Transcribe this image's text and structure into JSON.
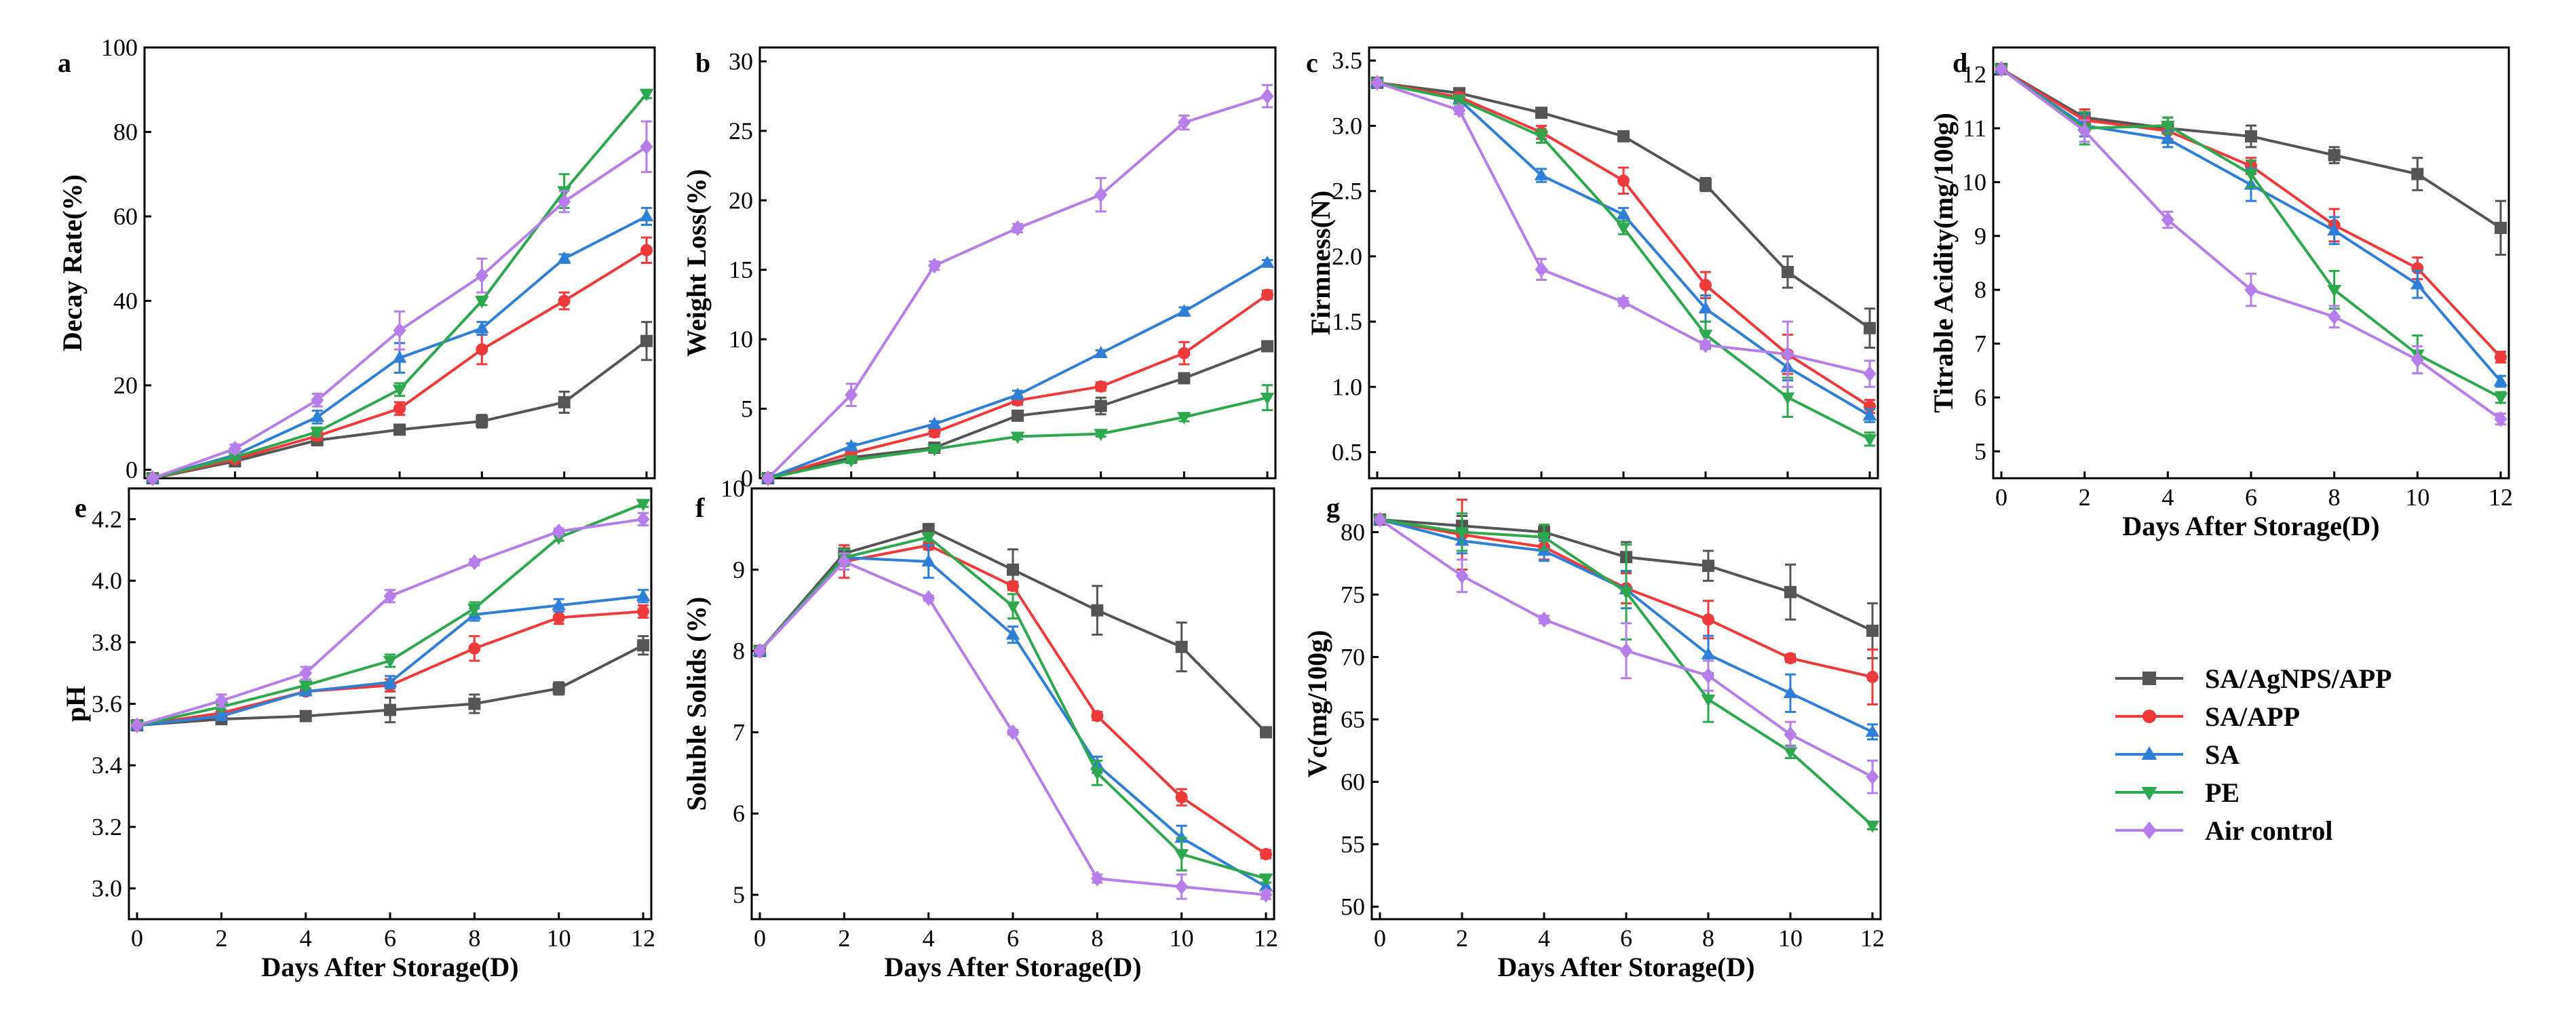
{
  "figure": {
    "series_names": [
      "SA/AgNPS/APP",
      "SA/APP",
      "SA",
      "PE",
      "Air control"
    ],
    "series_colors": [
      "#555555",
      "#ee3a3a",
      "#2f7fd6",
      "#2ea84e",
      "#b57ee8"
    ],
    "series_markers": [
      "square",
      "circle",
      "triangle-up",
      "triangle-down",
      "diamond"
    ],
    "legend_position": "lower-right"
  },
  "chart_data": [
    {
      "type": "line",
      "panel_label": "a",
      "title": "",
      "xlabel": "",
      "ylabel": "Decay Rate(%)",
      "x": [
        0,
        2,
        4,
        6,
        8,
        10,
        12
      ],
      "xlim": [
        0,
        12
      ],
      "ylim": [
        -2,
        100
      ],
      "xticks": [
        0,
        2,
        4,
        6,
        8,
        10,
        12
      ],
      "show_xticklabels": false,
      "yticks": [
        0,
        20,
        40,
        60,
        80,
        100
      ],
      "series": [
        {
          "name": "SA/AgNPS/APP",
          "values": [
            -2,
            2,
            7,
            9.5,
            11.5,
            16,
            30.5
          ],
          "errors": [
            0,
            0.5,
            0.5,
            1,
            1.5,
            2.5,
            4.5
          ]
        },
        {
          "name": "SA/APP",
          "values": [
            -2,
            2.5,
            8,
            14.5,
            28.5,
            40,
            52
          ],
          "errors": [
            0,
            0.5,
            1,
            1.5,
            3.5,
            2,
            3
          ]
        },
        {
          "name": "SA",
          "values": [
            -2,
            3.5,
            12.5,
            26.5,
            33.5,
            50,
            60
          ],
          "errors": [
            0,
            0.5,
            1.5,
            3.5,
            1.5,
            1,
            2
          ]
        },
        {
          "name": "PE",
          "values": [
            -2,
            3,
            9,
            19,
            40,
            66,
            89
          ],
          "errors": [
            0,
            0.5,
            1,
            1.5,
            1,
            4,
            1
          ]
        },
        {
          "name": "Air control",
          "values": [
            -2,
            5,
            16.5,
            33,
            46,
            63.5,
            76.5
          ],
          "errors": [
            0,
            1,
            1.5,
            4.5,
            4,
            2.5,
            6
          ]
        }
      ]
    },
    {
      "type": "line",
      "panel_label": "b",
      "title": "",
      "xlabel": "",
      "ylabel": "Weight Loss(%)",
      "x": [
        0,
        2,
        4,
        6,
        8,
        10,
        12
      ],
      "xlim": [
        0,
        12
      ],
      "ylim": [
        0,
        31
      ],
      "xticks": [
        0,
        2,
        4,
        6,
        8,
        10,
        12
      ],
      "show_xticklabels": false,
      "yticks": [
        0,
        5,
        10,
        15,
        20,
        25,
        30
      ],
      "series": [
        {
          "name": "SA/AgNPS/APP",
          "values": [
            0,
            1.5,
            2.2,
            4.5,
            5.2,
            7.2,
            9.5
          ],
          "errors": [
            0,
            0.2,
            0.2,
            0.3,
            0.6,
            0.3,
            0.2
          ]
        },
        {
          "name": "SA/APP",
          "values": [
            0,
            1.8,
            3.3,
            5.6,
            6.6,
            9,
            13.2
          ],
          "errors": [
            0,
            0.2,
            0.3,
            0.3,
            0.3,
            0.8,
            0.3
          ]
        },
        {
          "name": "SA",
          "values": [
            0,
            2.3,
            3.9,
            6,
            9,
            12,
            15.5
          ],
          "errors": [
            0,
            0.2,
            0.2,
            0.3,
            0.2,
            0.3,
            0.2
          ]
        },
        {
          "name": "PE",
          "values": [
            0,
            1.3,
            2.1,
            3,
            3.2,
            4.4,
            5.8
          ],
          "errors": [
            0,
            0.2,
            0.2,
            0.2,
            0.2,
            0.3,
            0.9
          ]
        },
        {
          "name": "Air control",
          "values": [
            0,
            6,
            15.3,
            18,
            20.4,
            25.6,
            27.5
          ],
          "errors": [
            0,
            0.8,
            0.3,
            0.3,
            1.2,
            0.5,
            0.8
          ]
        }
      ]
    },
    {
      "type": "line",
      "panel_label": "c",
      "title": "",
      "xlabel": "",
      "ylabel": "Firmness(N)",
      "x": [
        0,
        2,
        4,
        6,
        8,
        10,
        12
      ],
      "xlim": [
        0,
        12
      ],
      "ylim": [
        0.3,
        3.6
      ],
      "xticks": [
        0,
        2,
        4,
        6,
        8,
        10,
        12
      ],
      "show_xticklabels": false,
      "yticks": [
        0.5,
        1.0,
        1.5,
        2.0,
        2.5,
        3.0,
        3.5
      ],
      "series": [
        {
          "name": "SA/AgNPS/APP",
          "values": [
            3.33,
            3.25,
            3.1,
            2.92,
            2.55,
            1.88,
            1.45
          ],
          "errors": [
            0,
            0.03,
            0.03,
            0.03,
            0.05,
            0.12,
            0.15
          ]
        },
        {
          "name": "SA/APP",
          "values": [
            3.33,
            3.22,
            2.95,
            2.58,
            1.78,
            1.25,
            0.85
          ],
          "errors": [
            0,
            0.03,
            0.05,
            0.1,
            0.1,
            0.15,
            0.05
          ]
        },
        {
          "name": "SA",
          "values": [
            3.33,
            3.2,
            2.62,
            2.32,
            1.6,
            1.15,
            0.78
          ],
          "errors": [
            0,
            0.03,
            0.05,
            0.05,
            0.1,
            0.1,
            0.05
          ]
        },
        {
          "name": "PE",
          "values": [
            3.33,
            3.2,
            2.92,
            2.22,
            1.4,
            0.92,
            0.6
          ],
          "errors": [
            0,
            0.03,
            0.05,
            0.05,
            0.1,
            0.15,
            0.05
          ]
        },
        {
          "name": "Air control",
          "values": [
            3.33,
            3.12,
            1.9,
            1.65,
            1.32,
            1.25,
            1.1
          ],
          "errors": [
            0,
            0.03,
            0.08,
            0.03,
            0.03,
            0.25,
            0.1
          ]
        }
      ]
    },
    {
      "type": "line",
      "panel_label": "d",
      "title": "",
      "xlabel": "Days After Storage(D)",
      "ylabel": "Titrable Acidity(mg/100g)",
      "x": [
        0,
        2,
        4,
        6,
        8,
        10,
        12
      ],
      "xlim": [
        0,
        12
      ],
      "ylim": [
        4.5,
        12.5
      ],
      "xticks": [
        0,
        2,
        4,
        6,
        8,
        10,
        12
      ],
      "show_xticklabels": true,
      "yticks": [
        5,
        6,
        7,
        8,
        9,
        10,
        11,
        12
      ],
      "series": [
        {
          "name": "SA/AgNPS/APP",
          "values": [
            12.1,
            11.2,
            11.0,
            10.85,
            10.5,
            10.15,
            9.15
          ],
          "errors": [
            0,
            0.15,
            0.2,
            0.2,
            0.15,
            0.3,
            0.5
          ]
        },
        {
          "name": "SA/APP",
          "values": [
            12.1,
            11.15,
            10.95,
            10.3,
            9.2,
            8.4,
            6.75
          ],
          "errors": [
            0,
            0.2,
            0.15,
            0.15,
            0.3,
            0.2,
            0.1
          ]
        },
        {
          "name": "SA",
          "values": [
            12.1,
            11.05,
            10.8,
            9.95,
            9.1,
            8.1,
            6.3
          ],
          "errors": [
            0,
            0.2,
            0.15,
            0.3,
            0.25,
            0.25,
            0.1
          ]
        },
        {
          "name": "PE",
          "values": [
            12.1,
            11.0,
            11.05,
            10.15,
            8.0,
            6.8,
            6.0
          ],
          "errors": [
            0,
            0.3,
            0.15,
            0.25,
            0.35,
            0.35,
            0.1
          ]
        },
        {
          "name": "Air control",
          "values": [
            12.1,
            10.95,
            9.3,
            8.0,
            7.5,
            6.7,
            5.6
          ],
          "errors": [
            0,
            0.2,
            0.15,
            0.3,
            0.2,
            0.25,
            0.1
          ]
        }
      ]
    },
    {
      "type": "line",
      "panel_label": "e",
      "title": "",
      "xlabel": "Days After Storage(D)",
      "ylabel": "pH",
      "x": [
        0,
        2,
        4,
        6,
        8,
        10,
        12
      ],
      "xlim": [
        0,
        12
      ],
      "ylim": [
        2.9,
        4.3
      ],
      "xticks": [
        0,
        2,
        4,
        6,
        8,
        10,
        12
      ],
      "show_xticklabels": true,
      "yticks": [
        3.0,
        3.2,
        3.4,
        3.6,
        3.8,
        4.0,
        4.2
      ],
      "series": [
        {
          "name": "SA/AgNPS/APP",
          "values": [
            3.53,
            3.55,
            3.56,
            3.58,
            3.6,
            3.65,
            3.79
          ],
          "errors": [
            0,
            0.01,
            0.01,
            0.04,
            0.03,
            0.02,
            0.03
          ]
        },
        {
          "name": "SA/APP",
          "values": [
            3.53,
            3.57,
            3.64,
            3.66,
            3.78,
            3.88,
            3.9
          ],
          "errors": [
            0,
            0.01,
            0.01,
            0.02,
            0.04,
            0.02,
            0.02
          ]
        },
        {
          "name": "SA",
          "values": [
            3.53,
            3.56,
            3.64,
            3.67,
            3.89,
            3.92,
            3.95
          ],
          "errors": [
            0,
            0.01,
            0.01,
            0.02,
            0.02,
            0.02,
            0.02
          ]
        },
        {
          "name": "PE",
          "values": [
            3.53,
            3.59,
            3.66,
            3.74,
            3.91,
            4.14,
            4.25
          ],
          "errors": [
            0,
            0.01,
            0.01,
            0.02,
            0.02,
            0.01,
            0.01
          ]
        },
        {
          "name": "Air control",
          "values": [
            3.53,
            3.61,
            3.7,
            3.95,
            4.06,
            4.16,
            4.2
          ],
          "errors": [
            0,
            0.02,
            0.02,
            0.02,
            0.01,
            0.01,
            0.02
          ]
        }
      ]
    },
    {
      "type": "line",
      "panel_label": "f",
      "title": "",
      "xlabel": "Days After Storage(D)",
      "ylabel": "Soluble Solids (%)",
      "x": [
        0,
        2,
        4,
        6,
        8,
        10,
        12
      ],
      "xlim": [
        0,
        12
      ],
      "ylim": [
        4.7,
        10
      ],
      "xticks": [
        0,
        2,
        4,
        6,
        8,
        10,
        12
      ],
      "show_xticklabels": true,
      "yticks": [
        5,
        6,
        7,
        8,
        9,
        10
      ],
      "series": [
        {
          "name": "SA/AgNPS/APP",
          "values": [
            8.0,
            9.2,
            9.5,
            9.0,
            8.5,
            8.05,
            7.0
          ],
          "errors": [
            0,
            0.1,
            0.05,
            0.25,
            0.3,
            0.3,
            0.05
          ]
        },
        {
          "name": "SA/APP",
          "values": [
            8.0,
            9.1,
            9.3,
            8.8,
            7.2,
            6.2,
            5.5
          ],
          "errors": [
            0,
            0.2,
            0.05,
            0.05,
            0.05,
            0.1,
            0.05
          ]
        },
        {
          "name": "SA",
          "values": [
            8.0,
            9.15,
            9.1,
            8.2,
            6.6,
            5.7,
            5.1
          ],
          "errors": [
            0,
            0.1,
            0.2,
            0.1,
            0.1,
            0.15,
            0.05
          ]
        },
        {
          "name": "PE",
          "values": [
            8.0,
            9.15,
            9.4,
            8.55,
            6.5,
            5.5,
            5.2
          ],
          "errors": [
            0,
            0.1,
            0.05,
            0.15,
            0.15,
            0.2,
            0.05
          ]
        },
        {
          "name": "Air control",
          "values": [
            8.0,
            9.1,
            8.65,
            7.0,
            5.2,
            5.1,
            5.0
          ],
          "errors": [
            0,
            0.1,
            0.03,
            0.03,
            0.05,
            0.15,
            0.05
          ]
        }
      ]
    },
    {
      "type": "line",
      "panel_label": "g",
      "title": "",
      "xlabel": "Days After Storage(D)",
      "ylabel": "Vc(mg/100g)",
      "x": [
        0,
        2,
        4,
        6,
        8,
        10,
        12
      ],
      "xlim": [
        0,
        12
      ],
      "ylim": [
        49,
        83.5
      ],
      "xticks": [
        0,
        2,
        4,
        6,
        8,
        10,
        12
      ],
      "show_xticklabels": true,
      "yticks": [
        50,
        55,
        60,
        65,
        70,
        75,
        80
      ],
      "series": [
        {
          "name": "SA/AgNPS/APP",
          "values": [
            81,
            80.5,
            80,
            78,
            77.3,
            75.2,
            72.1
          ],
          "errors": [
            0,
            0.8,
            0.5,
            1.2,
            1.2,
            2.2,
            2.2
          ]
        },
        {
          "name": "SA/APP",
          "values": [
            81,
            79.8,
            78.8,
            75.5,
            73,
            69.9,
            68.4
          ],
          "errors": [
            0,
            2.8,
            1,
            1.2,
            1.5,
            0.3,
            2.2
          ]
        },
        {
          "name": "SA",
          "values": [
            81,
            79.3,
            78.5,
            75.4,
            70.2,
            67.1,
            64
          ],
          "errors": [
            0,
            1,
            0.8,
            1.5,
            1.5,
            1.5,
            0.6
          ]
        },
        {
          "name": "PE",
          "values": [
            81,
            80,
            79.6,
            75.2,
            66.6,
            62.4,
            56.5
          ],
          "errors": [
            0,
            1.5,
            1,
            3.8,
            1.8,
            0.5,
            0.3
          ]
        },
        {
          "name": "Air control",
          "values": [
            81,
            76.5,
            73,
            70.5,
            68.5,
            63.8,
            60.4
          ],
          "errors": [
            0,
            1.3,
            0.3,
            2.2,
            1.2,
            1,
            1.3
          ]
        }
      ]
    }
  ]
}
